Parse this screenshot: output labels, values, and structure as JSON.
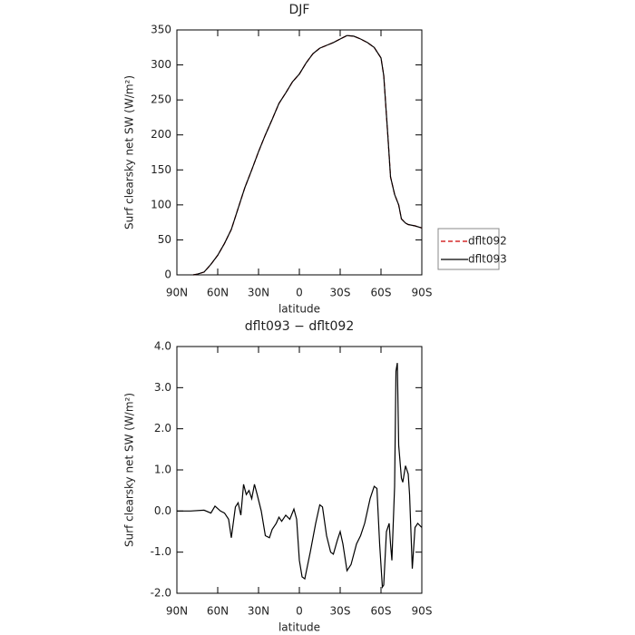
{
  "chart_data": [
    {
      "type": "line",
      "title": "DJF",
      "xlabel": "latitude",
      "ylabel": "Surf clearsky net SW (W/m²)",
      "x": [
        78,
        75,
        70,
        65,
        60,
        55,
        50,
        45,
        40,
        35,
        30,
        25,
        20,
        15,
        10,
        5,
        0,
        -5,
        -10,
        -15,
        -20,
        -25,
        -30,
        -35,
        -40,
        -45,
        -50,
        -55,
        -60,
        -62,
        -65,
        -67,
        -70,
        -73,
        -75,
        -78,
        -80,
        -85,
        -90
      ],
      "series": [
        {
          "name": "dflt092",
          "color": "#cc0000",
          "dash": true,
          "values": [
            0,
            1,
            4,
            15,
            28,
            45,
            65,
            95,
            125,
            150,
            176,
            200,
            222,
            245,
            260,
            276,
            287,
            303,
            316,
            324,
            328,
            332,
            337,
            342,
            341,
            337,
            332,
            325,
            310,
            285,
            200,
            140,
            115,
            100,
            80,
            74,
            72,
            70,
            67
          ]
        },
        {
          "name": "dflt093",
          "color": "#000000",
          "dash": false,
          "values": [
            0,
            1,
            4,
            15,
            28,
            45,
            65,
            95,
            125,
            150,
            176,
            200,
            222,
            245,
            260,
            276,
            287,
            303,
            316,
            324,
            328,
            332,
            337,
            342,
            341,
            337,
            332,
            325,
            310,
            285,
            200,
            140,
            115,
            100,
            80,
            74,
            72,
            70,
            67
          ]
        }
      ],
      "xlim": [
        90,
        -90
      ],
      "xticks": [
        {
          "value": 90,
          "label": "90N"
        },
        {
          "value": 60,
          "label": "60N"
        },
        {
          "value": 30,
          "label": "30N"
        },
        0,
        {
          "value": -30,
          "label": "30S"
        },
        {
          "value": -60,
          "label": "60S"
        },
        {
          "value": -90,
          "label": "90S"
        }
      ],
      "ylim": [
        0,
        350
      ],
      "yticks": [
        0,
        50,
        100,
        150,
        200,
        250,
        300,
        350
      ],
      "legend": "right"
    },
    {
      "type": "line",
      "title": "dflt093 − dflt092",
      "xlabel": "latitude",
      "ylabel": "Surf clearsky net SW (W/m²)",
      "x": [
        90,
        80,
        70,
        65,
        62,
        58,
        55,
        52,
        50,
        47,
        45,
        43,
        41,
        39,
        37,
        35,
        33,
        31,
        28,
        25,
        22,
        20,
        17,
        15,
        13,
        10,
        7,
        4,
        2,
        0,
        -2,
        -4,
        -8,
        -12,
        -15,
        -17,
        -20,
        -23,
        -25,
        -28,
        -30,
        -32,
        -35,
        -38,
        -42,
        -45,
        -48,
        -52,
        -55,
        -57,
        -59,
        -61,
        -62,
        -64,
        -66,
        -67,
        -68,
        -69,
        -70,
        -71,
        -72,
        -73,
        -75,
        -76,
        -78,
        -80,
        -81,
        -83,
        -85,
        -87,
        -90
      ],
      "color": "#000000",
      "values": [
        0,
        0,
        0.02,
        -0.05,
        0.12,
        0,
        -0.05,
        -0.2,
        -0.65,
        0.1,
        0.2,
        -0.1,
        0.65,
        0.4,
        0.5,
        0.3,
        0.65,
        0.4,
        0,
        -0.6,
        -0.65,
        -0.45,
        -0.3,
        -0.15,
        -0.25,
        -0.1,
        -0.2,
        0.05,
        -0.2,
        -1.2,
        -1.6,
        -1.65,
        -1.0,
        -0.3,
        0.15,
        0.1,
        -0.6,
        -1.0,
        -1.05,
        -0.7,
        -0.5,
        -0.8,
        -1.45,
        -1.3,
        -0.8,
        -0.6,
        -0.3,
        0.3,
        0.6,
        0.55,
        -0.8,
        -1.85,
        -1.8,
        -0.5,
        -0.3,
        -0.8,
        -1.2,
        -0.3,
        0.6,
        3.4,
        3.6,
        1.6,
        0.8,
        0.7,
        1.1,
        0.9,
        0.4,
        -1.4,
        -0.4,
        -0.3,
        -0.4
      ],
      "xlim": [
        90,
        -90
      ],
      "xticks": [
        {
          "value": 90,
          "label": "90N"
        },
        {
          "value": 60,
          "label": "60N"
        },
        {
          "value": 30,
          "label": "30N"
        },
        0,
        {
          "value": -30,
          "label": "30S"
        },
        {
          "value": -60,
          "label": "60S"
        },
        {
          "value": -90,
          "label": "90S"
        }
      ],
      "ylim": [
        -2,
        4
      ],
      "yticks": [
        {
          "value": -2,
          "label": "-2.0"
        },
        {
          "value": -1,
          "label": "-1.0"
        },
        {
          "value": 0,
          "label": "0.0"
        },
        {
          "value": 1,
          "label": "1.0"
        },
        {
          "value": 2,
          "label": "2.0"
        },
        {
          "value": 3,
          "label": "3.0"
        },
        {
          "value": 4,
          "label": "4.0"
        }
      ]
    }
  ]
}
